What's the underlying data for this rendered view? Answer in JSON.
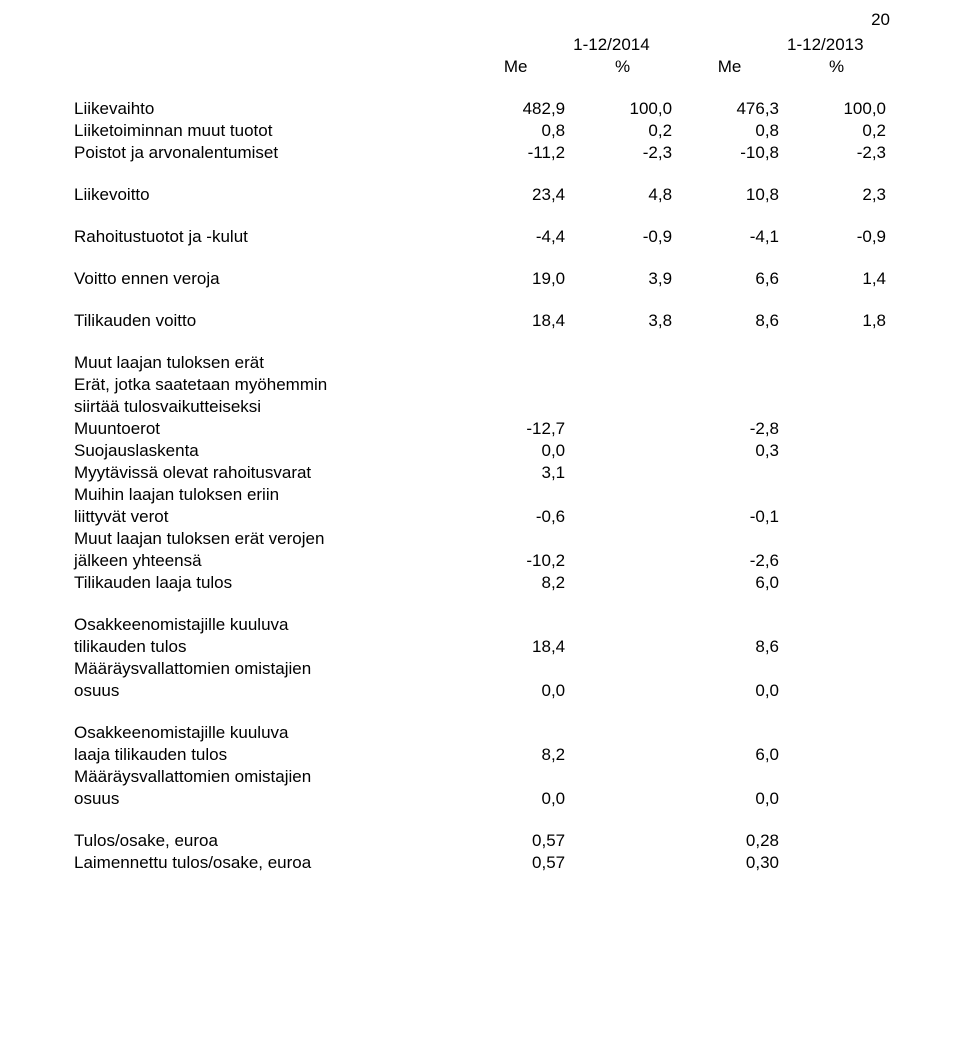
{
  "page_number": "20",
  "header": {
    "col1": "1-12/2014",
    "col2": "1-12/2013",
    "unit": "Me",
    "pct": "%"
  },
  "rows": {
    "liikevaihto": {
      "label": "Liikevaihto",
      "v1": "482,9",
      "p1": "100,0",
      "v2": "476,3",
      "p2": "100,0"
    },
    "liiketoiminnan_muut_tuotot": {
      "label": "Liiketoiminnan muut tuotot",
      "v1": "0,8",
      "p1": "0,2",
      "v2": "0,8",
      "p2": "0,2"
    },
    "poistot": {
      "label": "Poistot ja arvonalentumiset",
      "v1": "-11,2",
      "p1": "-2,3",
      "v2": "-10,8",
      "p2": "-2,3"
    },
    "liikevoitto": {
      "label": "Liikevoitto",
      "v1": "23,4",
      "p1": "4,8",
      "v2": "10,8",
      "p2": "2,3"
    },
    "rahoitus": {
      "label": "Rahoitustuotot ja -kulut",
      "v1": "-4,4",
      "p1": "-0,9",
      "v2": "-4,1",
      "p2": "-0,9"
    },
    "voitto_ennen_veroja": {
      "label": "Voitto ennen veroja",
      "v1": "19,0",
      "p1": "3,9",
      "v2": "6,6",
      "p2": "1,4"
    },
    "tilikauden_voitto": {
      "label": "Tilikauden voitto",
      "v1": "18,4",
      "p1": "3,8",
      "v2": "8,6",
      "p2": "1,8"
    },
    "muut_laajan_hdr": "Muut laajan tuloksen erät",
    "erat_jotka1": "Erät, jotka saatetaan myöhemmin",
    "erat_jotka2": "siirtää tulosvaikutteiseksi",
    "muuntoerot": {
      "label": "Muuntoerot",
      "v1": "-12,7",
      "v2": "-2,8"
    },
    "suojauslaskenta": {
      "label": "Suojauslaskenta",
      "v1": "0,0",
      "v2": "0,3"
    },
    "myytavissa": {
      "label": "Myytävissä olevat rahoitusvarat",
      "v1": "3,1"
    },
    "muihin_laajan1": "Muihin laajan tuloksen eriin",
    "liittyvat_verot": {
      "label": "liittyvät verot",
      "v1": "-0,6",
      "v2": "-0,1"
    },
    "muut_laajan_verojen1": "Muut laajan tuloksen erät verojen",
    "jalkeen_yhteensa": {
      "label": "jälkeen yhteensä",
      "v1": "-10,2",
      "v2": "-2,6"
    },
    "tilikauden_laaja": {
      "label": "Tilikauden laaja tulos",
      "v1": "8,2",
      "v2": "6,0"
    },
    "osake_kuuluva1": "Osakkeenomistajille kuuluva",
    "tilikauden_tulos": {
      "label": "tilikauden tulos",
      "v1": "18,4",
      "v2": "8,6"
    },
    "maarays1": "Määräysvallattomien omistajien",
    "osuus1": {
      "label": "osuus",
      "v1": "0,0",
      "v2": "0,0"
    },
    "osake_kuuluva2": "Osakkeenomistajille kuuluva",
    "laaja_tilikauden": {
      "label": "laaja tilikauden tulos",
      "v1": "8,2",
      "v2": "6,0"
    },
    "maarays2": "Määräysvallattomien omistajien",
    "osuus2": {
      "label": "osuus",
      "v1": "0,0",
      "v2": "0,0"
    },
    "tulos_osake": {
      "label": "Tulos/osake, euroa",
      "v1": "0,57",
      "v2": "0,28"
    },
    "laimennettu": {
      "label": "Laimennettu tulos/osake, euroa",
      "v1": "0,57",
      "v2": "0,30"
    }
  }
}
